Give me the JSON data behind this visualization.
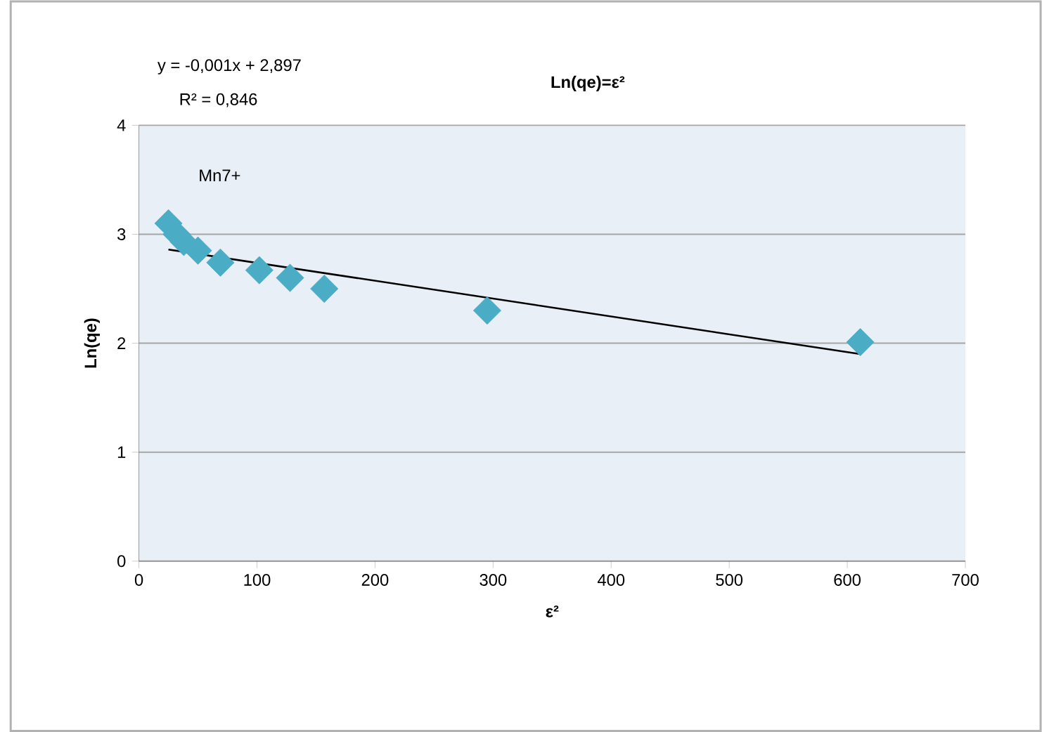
{
  "chart_data": {
    "type": "scatter",
    "title": "Ln(qe)=ε²",
    "xlabel": "ε²",
    "ylabel": "Ln(qe)",
    "annotations": [
      "y = -0,001x + 2,897",
      "R² = 0,846"
    ],
    "series": [
      {
        "name": "Mn7+",
        "color": "#4bacc6",
        "marker": "diamond",
        "x": [
          25,
          32,
          38,
          50,
          69,
          102,
          128,
          157,
          295,
          611
        ],
        "values": [
          3.1,
          3.0,
          2.93,
          2.85,
          2.74,
          2.67,
          2.6,
          2.5,
          2.3,
          2.01
        ]
      },
      {
        "type": "line",
        "color": "#000000",
        "marker": "none",
        "x": [
          25,
          611
        ],
        "values": [
          2.86,
          1.9
        ]
      }
    ],
    "xlim": [
      0,
      700
    ],
    "ylim": [
      0,
      4
    ],
    "xticks": [
      0,
      100,
      200,
      300,
      400,
      500,
      600,
      700
    ],
    "yticks": [
      0,
      1,
      2,
      3,
      4
    ],
    "grid": "y"
  }
}
